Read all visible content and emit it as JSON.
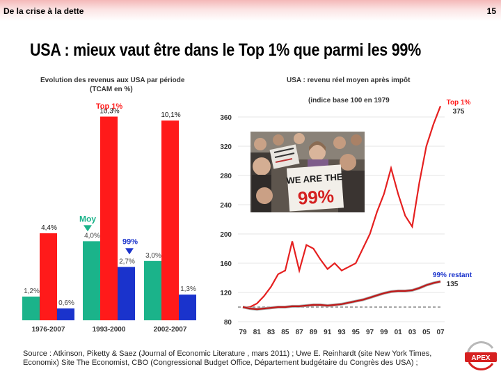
{
  "header": {
    "section": "De la crise à la dette",
    "page_number": "15"
  },
  "title": "USA : mieux vaut être dans le Top 1% que parmi les 99%",
  "colors": {
    "top1": "#ff1a1a",
    "moy": "#1bb38a",
    "pct99": "#1a33cc",
    "line_top": "#e52020",
    "line_99": "#c01818"
  },
  "chart_data": [
    {
      "type": "bar",
      "title": "Evolution des revenus  aux USA par période",
      "subtitle": "(TCAM en %)",
      "categories": [
        "1976-2007",
        "1993-2000",
        "2002-2007"
      ],
      "series": [
        {
          "name": "Moy",
          "values": [
            1.2,
            4.0,
            3.0
          ],
          "labels": [
            "1,2%",
            "4,0%",
            "3,0%"
          ]
        },
        {
          "name": "Top 1%",
          "values": [
            4.4,
            10.3,
            10.1
          ],
          "labels": [
            "4,4%",
            "10,3%",
            "10,1%"
          ]
        },
        {
          "name": "99%",
          "values": [
            0.6,
            2.7,
            1.3
          ],
          "labels": [
            "0,6%",
            "2,7%",
            "1,3%"
          ]
        }
      ],
      "ylim": [
        0,
        11
      ]
    },
    {
      "type": "line",
      "title": "USA : revenu réel moyen après impôt",
      "subtitle": "(indice base 100 en 1979",
      "x": [
        1979,
        1980,
        1981,
        1982,
        1983,
        1984,
        1985,
        1986,
        1987,
        1988,
        1989,
        1990,
        1991,
        1992,
        1993,
        1994,
        1995,
        1996,
        1997,
        1998,
        1999,
        2000,
        2001,
        2002,
        2003,
        2004,
        2005,
        2006,
        2007
      ],
      "xticks": [
        "79",
        "81",
        "83",
        "85",
        "87",
        "89",
        "91",
        "93",
        "95",
        "97",
        "99",
        "01",
        "03",
        "05",
        "07"
      ],
      "yticks": [
        80,
        120,
        160,
        200,
        240,
        280,
        320,
        360
      ],
      "ylim": [
        80,
        380
      ],
      "series": [
        {
          "name": "Top 1%",
          "end_label": "375",
          "values": [
            100,
            100,
            105,
            115,
            128,
            145,
            150,
            190,
            150,
            185,
            180,
            165,
            152,
            160,
            150,
            155,
            160,
            180,
            200,
            230,
            255,
            290,
            255,
            225,
            210,
            270,
            320,
            350,
            375
          ]
        },
        {
          "name": "99% restant",
          "end_label": "135",
          "values": [
            100,
            98,
            97,
            98,
            99,
            100,
            100,
            101,
            101,
            102,
            103,
            103,
            102,
            103,
            104,
            106,
            108,
            110,
            113,
            116,
            119,
            121,
            122,
            122,
            123,
            126,
            130,
            133,
            135
          ]
        }
      ]
    }
  ],
  "photo": {
    "sign1_line1": "WE ARE THE",
    "sign1_line2": "99%"
  },
  "footer": {
    "source_text": "Source : Atkinson, Piketty & Saez (Journal of Economic Literature , mars 2011) ; Uwe E. Reinhardt (site New York Times, Economix) Site The Economist, CBO (Congressional Budget Office, Département budgétaire du Congrès des USA) ;"
  },
  "logo": {
    "text": "APEX"
  }
}
